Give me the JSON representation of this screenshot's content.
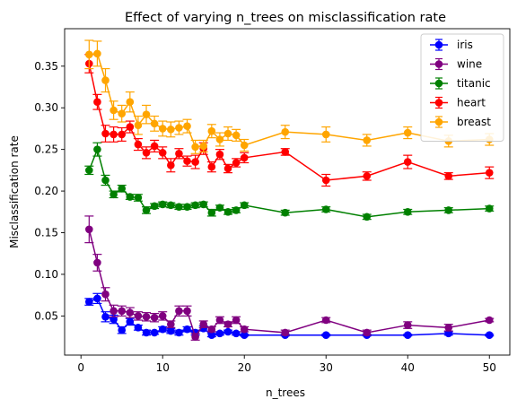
{
  "chart_data": {
    "type": "line",
    "title": "Effect of varying n_trees on misclassification rate",
    "xlabel": "n_trees",
    "ylabel": "Misclassification rate",
    "xlim": [
      -2,
      52.5
    ],
    "ylim": [
      0.003,
      0.395
    ],
    "x_ticks": [
      0,
      10,
      20,
      30,
      40,
      50
    ],
    "x_tick_labels": [
      "0",
      "10",
      "20",
      "30",
      "40",
      "50"
    ],
    "y_ticks": [
      0.05,
      0.1,
      0.15,
      0.2,
      0.25,
      0.3,
      0.35
    ],
    "y_tick_labels": [
      "0.05",
      "0.10",
      "0.15",
      "0.20",
      "0.25",
      "0.30",
      "0.35"
    ],
    "grid": false,
    "legend_position": "top-right",
    "x": [
      1,
      2,
      3,
      4,
      5,
      6,
      7,
      8,
      9,
      10,
      11,
      12,
      13,
      14,
      15,
      16,
      17,
      18,
      19,
      20,
      25,
      30,
      35,
      40,
      45,
      50
    ],
    "series": [
      {
        "name": "iris",
        "color": "#0000ff",
        "values": [
          0.067,
          0.071,
          0.049,
          0.046,
          0.033,
          0.043,
          0.036,
          0.03,
          0.03,
          0.034,
          0.032,
          0.03,
          0.034,
          0.03,
          0.035,
          0.027,
          0.029,
          0.031,
          0.029,
          0.027,
          0.027,
          0.027,
          0.027,
          0.027,
          0.029,
          0.027
        ],
        "errors": [
          0.004,
          0.006,
          0.006,
          0.005,
          0.004,
          0.004,
          0.003,
          0.003,
          0.002,
          0.003,
          0.003,
          0.003,
          0.003,
          0.003,
          0.003,
          0.002,
          0.002,
          0.002,
          0.002,
          0.001,
          0.001,
          0.001,
          0.001,
          0.001,
          0.002,
          0.001
        ]
      },
      {
        "name": "wine",
        "color": "#800080",
        "values": [
          0.154,
          0.114,
          0.076,
          0.056,
          0.056,
          0.054,
          0.05,
          0.049,
          0.048,
          0.05,
          0.04,
          0.056,
          0.056,
          0.025,
          0.04,
          0.034,
          0.045,
          0.04,
          0.045,
          0.034,
          0.03,
          0.045,
          0.03,
          0.039,
          0.036,
          0.045
        ],
        "errors": [
          0.016,
          0.01,
          0.008,
          0.007,
          0.006,
          0.006,
          0.005,
          0.005,
          0.005,
          0.005,
          0.004,
          0.006,
          0.006,
          0.004,
          0.004,
          0.003,
          0.004,
          0.003,
          0.004,
          0.003,
          0.003,
          0.003,
          0.003,
          0.004,
          0.004,
          0.002
        ]
      },
      {
        "name": "titanic",
        "color": "#008000",
        "values": [
          0.225,
          0.25,
          0.213,
          0.196,
          0.203,
          0.193,
          0.192,
          0.177,
          0.182,
          0.184,
          0.183,
          0.181,
          0.181,
          0.183,
          0.184,
          0.174,
          0.18,
          0.175,
          0.177,
          0.183,
          0.174,
          0.178,
          0.169,
          0.175,
          0.177,
          0.179
        ],
        "errors": [
          0.005,
          0.008,
          0.006,
          0.004,
          0.004,
          0.003,
          0.004,
          0.004,
          0.003,
          0.003,
          0.003,
          0.003,
          0.003,
          0.003,
          0.003,
          0.004,
          0.003,
          0.003,
          0.003,
          0.003,
          0.003,
          0.003,
          0.003,
          0.003,
          0.003,
          0.003
        ]
      },
      {
        "name": "heart",
        "color": "#ff0000",
        "values": [
          0.353,
          0.307,
          0.269,
          0.268,
          0.268,
          0.277,
          0.256,
          0.246,
          0.254,
          0.246,
          0.231,
          0.245,
          0.236,
          0.235,
          0.251,
          0.229,
          0.244,
          0.227,
          0.234,
          0.24,
          0.247,
          0.213,
          0.218,
          0.235,
          0.218,
          0.222
        ],
        "errors": [
          0.011,
          0.009,
          0.01,
          0.009,
          0.008,
          0.007,
          0.007,
          0.007,
          0.007,
          0.007,
          0.008,
          0.006,
          0.006,
          0.008,
          0.007,
          0.006,
          0.006,
          0.005,
          0.005,
          0.006,
          0.004,
          0.007,
          0.005,
          0.008,
          0.004,
          0.007
        ]
      },
      {
        "name": "breast",
        "color": "#ffa500",
        "values": [
          0.364,
          0.365,
          0.333,
          0.297,
          0.293,
          0.307,
          0.279,
          0.292,
          0.281,
          0.275,
          0.274,
          0.276,
          0.278,
          0.253,
          0.254,
          0.272,
          0.262,
          0.269,
          0.267,
          0.255,
          0.271,
          0.268,
          0.261,
          0.27,
          0.26,
          0.262
        ],
        "errors": [
          0.017,
          0.015,
          0.014,
          0.011,
          0.01,
          0.012,
          0.011,
          0.011,
          0.009,
          0.009,
          0.009,
          0.008,
          0.008,
          0.008,
          0.007,
          0.008,
          0.008,
          0.008,
          0.007,
          0.007,
          0.008,
          0.009,
          0.007,
          0.007,
          0.007,
          0.007
        ]
      }
    ]
  }
}
